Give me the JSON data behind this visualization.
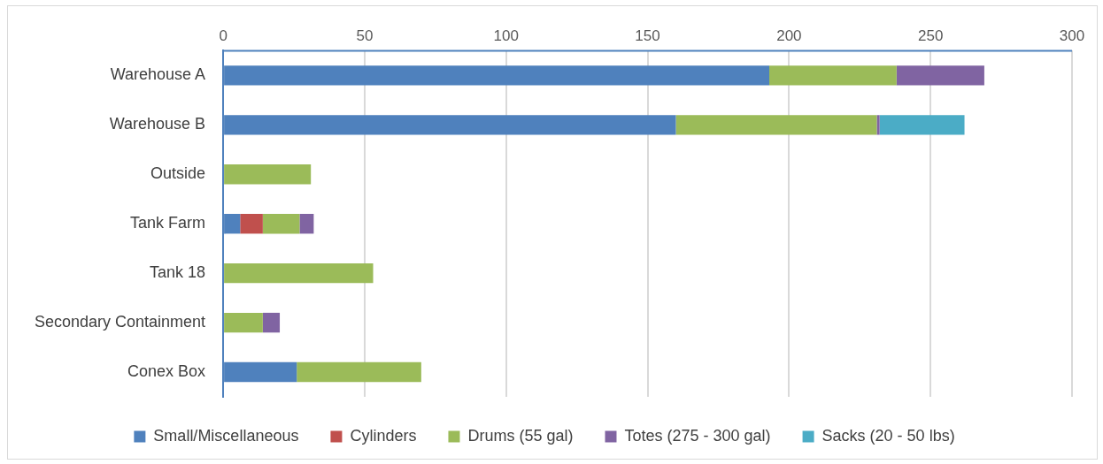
{
  "chart_data": {
    "type": "bar",
    "orientation": "horizontal",
    "stacked": true,
    "categories": [
      "Warehouse A",
      "Warehouse B",
      "Outside",
      "Tank Farm",
      "Tank 18",
      "Secondary Containment",
      "Conex Box"
    ],
    "series": [
      {
        "name": "Small/Miscellaneous",
        "color": "#4f81bd",
        "values": [
          193,
          160,
          null,
          6,
          null,
          null,
          26
        ]
      },
      {
        "name": "Cylinders",
        "color": "#c0504d",
        "values": [
          null,
          null,
          null,
          8,
          null,
          null,
          null
        ]
      },
      {
        "name": "Drums (55 gal)",
        "color": "#9bbb59",
        "values": [
          45,
          71,
          31,
          13,
          53,
          14,
          44
        ]
      },
      {
        "name": "Totes (275 - 300 gal)",
        "color": "#8064a2",
        "values": [
          31,
          1,
          null,
          5,
          null,
          6,
          null
        ]
      },
      {
        "name": "Sacks (20 - 50 lbs)",
        "color": "#4bacc6",
        "values": [
          null,
          30,
          null,
          null,
          null,
          null,
          null
        ]
      }
    ],
    "xlim": [
      0,
      300
    ],
    "xticks": [
      0,
      50,
      100,
      150,
      200,
      250,
      300
    ],
    "grid": "x",
    "legend": "bottom"
  }
}
